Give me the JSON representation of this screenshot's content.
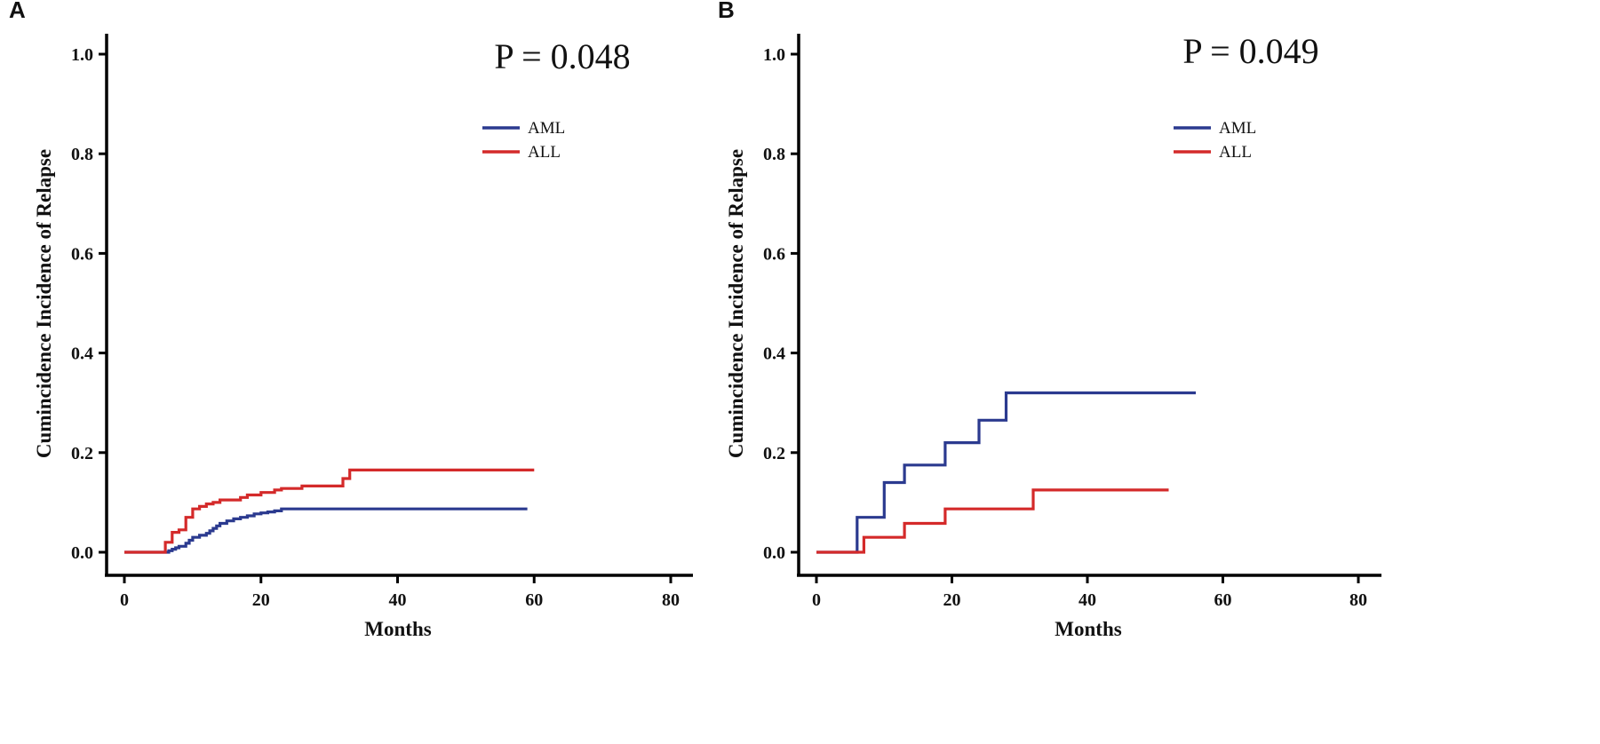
{
  "figure": {
    "panels_count": 2
  },
  "chart_data": [
    {
      "panel": "A",
      "type": "line",
      "step": true,
      "title": "",
      "annotation": "P = 0.048",
      "xlabel": "Months",
      "ylabel": "Cumincidence Incidence of Relapse",
      "xlim": [
        0,
        80
      ],
      "ylim": [
        0,
        1.0
      ],
      "xticks": [
        "0",
        "20",
        "40",
        "60",
        "80"
      ],
      "xtick_values": [
        0,
        20,
        40,
        60,
        80
      ],
      "yticks": [
        "0.0",
        "0.2",
        "0.4",
        "0.6",
        "0.8",
        "1.0"
      ],
      "ytick_values": [
        0,
        0.2,
        0.4,
        0.6,
        0.8,
        1.0
      ],
      "legend_position": "top-right",
      "series": [
        {
          "name": "AML",
          "color": "#2b3a8f",
          "x": [
            0,
            6,
            6.5,
            7,
            7.5,
            8,
            9,
            9.5,
            10,
            11,
            12,
            12.5,
            13,
            13.5,
            14,
            15,
            16,
            17,
            18,
            19,
            20,
            21,
            22,
            23,
            59
          ],
          "y": [
            0,
            0,
            0.003,
            0.006,
            0.009,
            0.012,
            0.018,
            0.024,
            0.03,
            0.034,
            0.038,
            0.043,
            0.048,
            0.053,
            0.058,
            0.063,
            0.067,
            0.07,
            0.073,
            0.077,
            0.079,
            0.081,
            0.083,
            0.087,
            0.087
          ]
        },
        {
          "name": "ALL",
          "color": "#d42a2a",
          "x": [
            0,
            6,
            7,
            8,
            9,
            10,
            11,
            12,
            13,
            14,
            17,
            18,
            20,
            22,
            23,
            26,
            32,
            33,
            60
          ],
          "y": [
            0,
            0.02,
            0.04,
            0.045,
            0.07,
            0.087,
            0.092,
            0.097,
            0.1,
            0.105,
            0.11,
            0.115,
            0.12,
            0.125,
            0.128,
            0.133,
            0.148,
            0.165,
            0.165
          ]
        }
      ]
    },
    {
      "panel": "B",
      "type": "line",
      "step": true,
      "title": "",
      "annotation": "P = 0.049",
      "xlabel": "Months",
      "ylabel": "Cumincidence Incidence of Relapse",
      "xlim": [
        0,
        80
      ],
      "ylim": [
        0,
        1.0
      ],
      "xticks": [
        "0",
        "20",
        "40",
        "60",
        "80"
      ],
      "xtick_values": [
        0,
        20,
        40,
        60,
        80
      ],
      "yticks": [
        "0.0",
        "0.2",
        "0.4",
        "0.6",
        "0.8",
        "1.0"
      ],
      "ytick_values": [
        0,
        0.2,
        0.4,
        0.6,
        0.8,
        1.0
      ],
      "legend_position": "top-right",
      "series": [
        {
          "name": "AML",
          "color": "#2b3a8f",
          "x": [
            0,
            6,
            10,
            13,
            19,
            24,
            28,
            56
          ],
          "y": [
            0,
            0.07,
            0.14,
            0.175,
            0.22,
            0.265,
            0.32,
            0.32
          ]
        },
        {
          "name": "ALL",
          "color": "#d42a2a",
          "x": [
            0,
            7,
            13,
            19,
            32,
            52
          ],
          "y": [
            0,
            0.03,
            0.058,
            0.087,
            0.125,
            0.125
          ]
        }
      ]
    }
  ]
}
